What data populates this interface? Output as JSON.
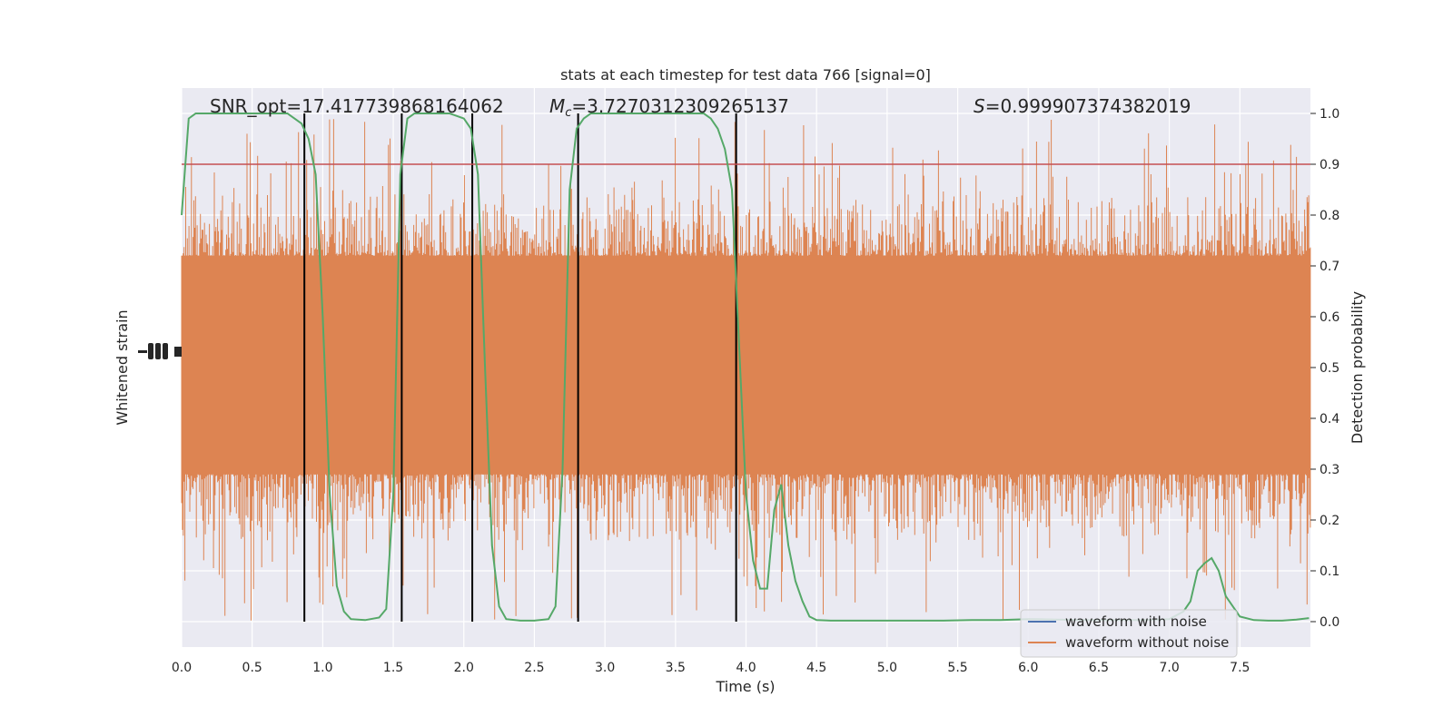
{
  "chart_data": {
    "type": "line",
    "title": "stats at each timestep for test data 766 [signal=0]",
    "xlabel": "Time (s)",
    "ylabel_left": "Whitened strain",
    "ylabel_right": "Detection probability",
    "xlim": [
      0,
      8
    ],
    "ylim_right": [
      -0.05,
      1.05
    ],
    "x_ticks": [
      "0.0",
      "0.5",
      "1.0",
      "1.5",
      "2.0",
      "2.5",
      "3.0",
      "3.5",
      "4.0",
      "4.5",
      "5.0",
      "5.5",
      "6.0",
      "6.5",
      "7.0",
      "7.5"
    ],
    "x_tick_values": [
      0,
      0.5,
      1,
      1.5,
      2,
      2.5,
      3,
      3.5,
      4,
      4.5,
      5,
      5.5,
      6,
      6.5,
      7,
      7.5
    ],
    "y_ticks_right": [
      "0.0",
      "0.1",
      "0.2",
      "0.3",
      "0.4",
      "0.5",
      "0.6",
      "0.7",
      "0.8",
      "0.9",
      "1.0"
    ],
    "y_tick_values_right": [
      0,
      0.1,
      0.2,
      0.3,
      0.4,
      0.5,
      0.6,
      0.7,
      0.8,
      0.9,
      1.0
    ],
    "grid": true,
    "legend_position": "lower-right",
    "annotations": {
      "snr": "SNR_opt=17.417739868164062",
      "mc_symbol": "M",
      "mc_subscript": "c",
      "mc_value": "=3.7270312309265137",
      "s_symbol": "S",
      "s_value": "=0.999907374382019"
    },
    "threshold": 0.9,
    "vertical_lines": [
      0.87,
      1.56,
      2.06,
      2.81,
      3.93
    ],
    "series": [
      {
        "name": "waveform with noise",
        "color": "#4c72b0"
      },
      {
        "name": "waveform without noise",
        "color": "#dd8452",
        "type": "noise",
        "center": 0.5,
        "band_low": 0.29,
        "band_high": 0.72,
        "extreme_low": 0.0,
        "extreme_high": 0.99
      },
      {
        "color": "#55a868",
        "x": [
          0,
          0.05,
          0.1,
          0.15,
          0.2,
          0.3,
          0.4,
          0.5,
          0.6,
          0.7,
          0.75,
          0.8,
          0.85,
          0.9,
          0.95,
          1.0,
          1.05,
          1.1,
          1.15,
          1.2,
          1.3,
          1.4,
          1.45,
          1.5,
          1.55,
          1.6,
          1.65,
          1.7,
          1.8,
          1.9,
          2.0,
          2.05,
          2.1,
          2.15,
          2.2,
          2.25,
          2.3,
          2.4,
          2.5,
          2.6,
          2.65,
          2.7,
          2.75,
          2.8,
          2.85,
          2.9,
          3.0,
          3.2,
          3.4,
          3.6,
          3.7,
          3.75,
          3.8,
          3.85,
          3.9,
          3.95,
          4.0,
          4.05,
          4.1,
          4.15,
          4.2,
          4.25,
          4.3,
          4.35,
          4.4,
          4.45,
          4.5,
          4.6,
          4.8,
          5.0,
          5.2,
          5.4,
          5.6,
          5.8,
          6.0,
          6.2,
          6.4,
          6.6,
          6.8,
          7.0,
          7.1,
          7.15,
          7.2,
          7.25,
          7.3,
          7.35,
          7.4,
          7.5,
          7.6,
          7.7,
          7.8,
          7.9,
          7.99
        ],
        "y": [
          0.8,
          0.99,
          1.0,
          1.0,
          1.0,
          1.0,
          1.0,
          1.0,
          1.0,
          1.0,
          1.0,
          0.99,
          0.98,
          0.95,
          0.88,
          0.6,
          0.25,
          0.07,
          0.02,
          0.005,
          0.003,
          0.008,
          0.025,
          0.25,
          0.88,
          0.99,
          1.0,
          1.0,
          1.0,
          1.0,
          0.99,
          0.97,
          0.88,
          0.5,
          0.15,
          0.03,
          0.005,
          0.002,
          0.002,
          0.005,
          0.03,
          0.3,
          0.85,
          0.97,
          0.99,
          1.0,
          1.0,
          1.0,
          1.0,
          1.0,
          1.0,
          0.99,
          0.97,
          0.93,
          0.85,
          0.55,
          0.25,
          0.12,
          0.065,
          0.065,
          0.22,
          0.27,
          0.15,
          0.08,
          0.04,
          0.01,
          0.003,
          0.002,
          0.002,
          0.002,
          0.002,
          0.002,
          0.003,
          0.003,
          0.005,
          0.004,
          0.003,
          0.003,
          0.003,
          0.005,
          0.02,
          0.04,
          0.1,
          0.115,
          0.125,
          0.1,
          0.05,
          0.01,
          0.003,
          0.002,
          0.002,
          0.004,
          0.007
        ]
      }
    ]
  }
}
